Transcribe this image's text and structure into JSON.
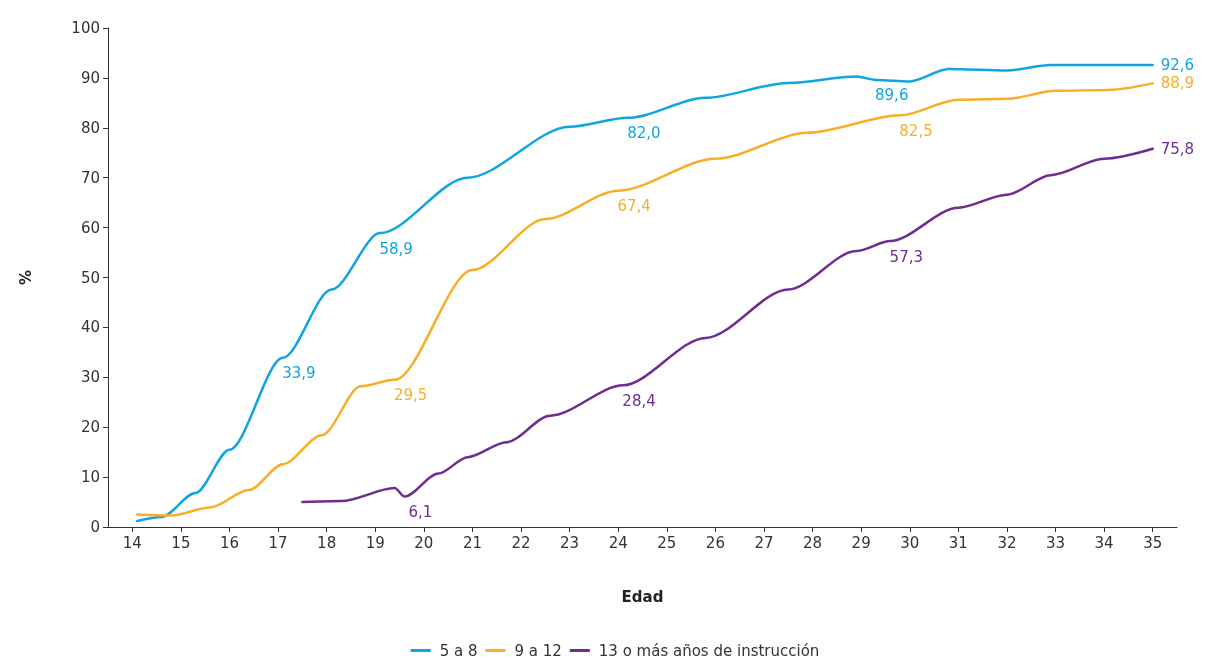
{
  "chart_data": {
    "type": "line",
    "xlabel": "Edad",
    "ylabel": "%",
    "xlim": [
      13.5,
      35.5
    ],
    "xticks": [
      14,
      15,
      16,
      17,
      18,
      19,
      20,
      21,
      22,
      23,
      24,
      25,
      26,
      27,
      28,
      29,
      30,
      31,
      32,
      33,
      34,
      35
    ],
    "ylim": [
      0,
      100
    ],
    "yticks": [
      0,
      10,
      20,
      30,
      40,
      50,
      60,
      70,
      80,
      90,
      100
    ],
    "grid": false,
    "legend": "bottom",
    "marker": "none",
    "line_style": "solid",
    "series": [
      {
        "name": "5 a 8",
        "color": "#0ea5e0",
        "x": [
          14.1,
          14.6,
          15.3,
          16,
          17.1,
          18.1,
          19.1,
          20.9,
          23,
          24.2,
          25.8,
          27.5,
          28.9,
          29.3,
          30,
          30.8,
          32,
          32.9,
          35
        ],
        "values": [
          1.2,
          2,
          6.8,
          15.5,
          33.9,
          47.6,
          58.9,
          70,
          80.2,
          82,
          86,
          89,
          90.3,
          89.6,
          89.3,
          91.8,
          91.5,
          92.6,
          92.6
        ],
        "value_labels": [
          null,
          null,
          null,
          null,
          "33,9",
          null,
          "58,9",
          null,
          null,
          "82,0",
          null,
          null,
          null,
          "89,6",
          null,
          null,
          null,
          null,
          "92,6"
        ]
      },
      {
        "name": "9 a 12",
        "color": "#f8ae27",
        "x": [
          14.1,
          14.8,
          15.6,
          16.4,
          17.1,
          17.9,
          18.7,
          19.4,
          21,
          22.5,
          24,
          26,
          27.9,
          29.8,
          31,
          32,
          33,
          34.1,
          35
        ],
        "values": [
          2.5,
          2.3,
          3.9,
          7.4,
          12.6,
          18.4,
          28.2,
          29.5,
          51.5,
          61.7,
          67.4,
          73.8,
          79,
          82.5,
          85.6,
          85.8,
          87.4,
          87.6,
          88.9
        ],
        "value_labels": [
          null,
          null,
          null,
          null,
          null,
          null,
          null,
          "29,5",
          null,
          null,
          "67,4",
          null,
          null,
          "82,5",
          null,
          null,
          null,
          null,
          "88,9"
        ]
      },
      {
        "name": "13 o más años de instrucción",
        "color": "#6f2c91",
        "x": [
          17.5,
          18.3,
          19.4,
          19.6,
          20.3,
          20.9,
          21.7,
          22.6,
          24.1,
          25.8,
          27.5,
          28.9,
          29.6,
          31,
          32,
          32.9,
          34,
          35
        ],
        "values": [
          5,
          5.2,
          7.8,
          6.1,
          10.7,
          14,
          17,
          22.3,
          28.4,
          37.9,
          47.6,
          55.3,
          57.3,
          64,
          66.6,
          70.5,
          73.8,
          75.8
        ],
        "value_labels": [
          null,
          null,
          null,
          "6,1",
          null,
          null,
          null,
          null,
          "28,4",
          null,
          null,
          null,
          "57,3",
          null,
          null,
          null,
          null,
          "75,8"
        ]
      }
    ]
  }
}
